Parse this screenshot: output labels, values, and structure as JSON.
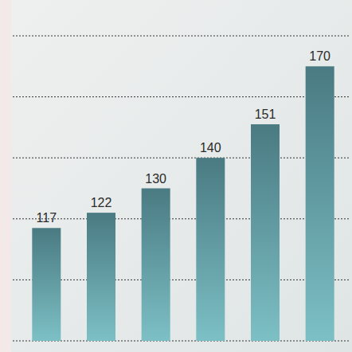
{
  "chart_data": {
    "type": "bar",
    "categories": [
      null,
      null,
      null,
      null,
      null,
      null
    ],
    "values": [
      117,
      122,
      130,
      140,
      151,
      170
    ],
    "color": "#4a7a82",
    "ylim": [
      80,
      180
    ],
    "yticks": [
      80,
      100,
      120,
      140,
      160,
      180
    ],
    "grid": true,
    "data_labels": true,
    "tick_labels": false
  }
}
